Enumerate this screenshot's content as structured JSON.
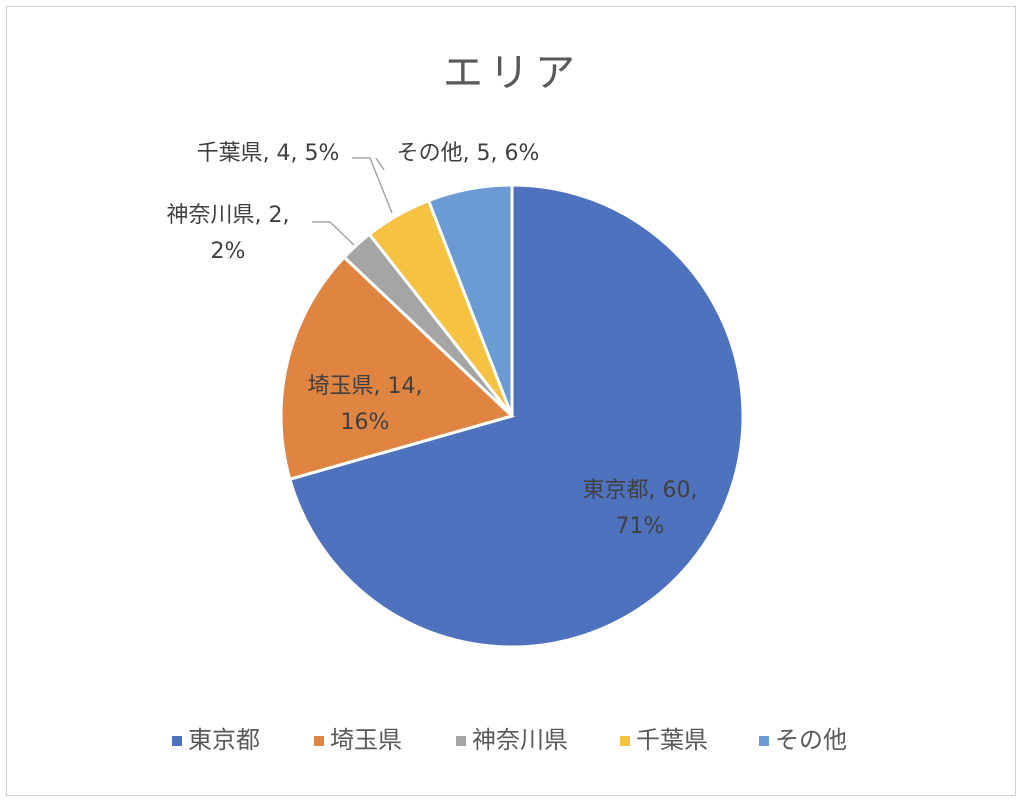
{
  "chart_data": {
    "type": "pie",
    "title": "エリア",
    "categories": [
      "東京都",
      "埼玉県",
      "神奈川県",
      "千葉県",
      "その他"
    ],
    "values": [
      60,
      14,
      2,
      4,
      5
    ],
    "percent_labels": [
      "71%",
      "16%",
      "2%",
      "5%",
      "6%"
    ],
    "data_labels": [
      [
        "東京都, 60,",
        "71%"
      ],
      [
        "埼玉県, 14,",
        "16%"
      ],
      [
        "神奈川県, 2,",
        "2%"
      ],
      [
        "千葉県, 4, 5%"
      ],
      [
        "その他, 5, 6%"
      ]
    ],
    "colors": [
      "#4f72bf",
      "#e08442",
      "#a5a5a5",
      "#f5c242",
      "#6a9bd4"
    ],
    "legend_position": "bottom",
    "start_angle_deg": 0,
    "direction": "clockwise"
  }
}
